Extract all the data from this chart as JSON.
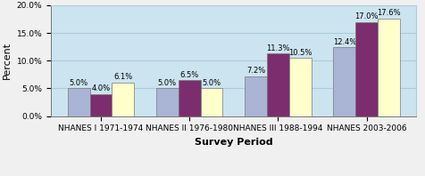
{
  "xlabel": "Survey Period",
  "ylabel": "Percent",
  "categories": [
    "NHANES I 1971-1974",
    "NHANES II 1976-1980",
    "NHANES III 1988-1994",
    "NHANES 2003-2006"
  ],
  "series": {
    "Aged 2-5  years": [
      5.0,
      5.0,
      7.2,
      12.4
    ],
    "Aged 6-11 years": [
      4.0,
      6.5,
      11.3,
      17.0
    ],
    "Aged  12-19 year": [
      6.1,
      5.0,
      10.5,
      17.6
    ]
  },
  "colors": {
    "Aged 2-5  years": "#aab4d4",
    "Aged 6-11 years": "#7b2d6e",
    "Aged  12-19 year": "#ffffcc"
  },
  "ylim": [
    0,
    20
  ],
  "yticks": [
    0,
    5,
    10,
    15,
    20
  ],
  "ytick_labels": [
    "0.0%",
    "5.0%",
    "10.0%",
    "15.0%",
    "20.0%"
  ],
  "bar_width": 0.25,
  "figure_facecolor": "#f0f0f0",
  "plot_area_color": "#cce4f0",
  "label_fontsize": 6.0,
  "axis_label_fontsize": 8,
  "tick_fontsize": 6.5,
  "legend_fontsize": 7,
  "grid_color": "#aaccdd"
}
